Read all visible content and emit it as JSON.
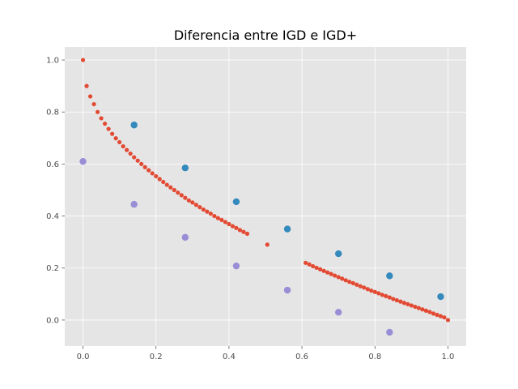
{
  "chart_data": {
    "type": "scatter",
    "title": "Diferencia entre IGD e IGD+",
    "xlabel": "",
    "ylabel": "",
    "xlim": [
      -0.05,
      1.05
    ],
    "ylim": [
      -0.1,
      1.05
    ],
    "xticks": [
      0.0,
      0.2,
      0.4,
      0.6,
      0.8,
      1.0
    ],
    "yticks": [
      0.0,
      0.2,
      0.4,
      0.6,
      0.8,
      1.0
    ],
    "xtick_labels": [
      "0.0",
      "0.2",
      "0.4",
      "0.6",
      "0.8",
      "1.0"
    ],
    "ytick_labels": [
      "0.0",
      "0.2",
      "0.4",
      "0.6",
      "0.8",
      "1.0"
    ],
    "grid": true,
    "style": "ggplot",
    "colors": {
      "background": "#e5e5e5",
      "grid": "#ffffff",
      "front": "#e24a33",
      "blue": "#348abd",
      "purple": "#988ed5"
    },
    "series": [
      {
        "color": "#e24a33",
        "marker_size": "small",
        "x": [
          0.0,
          0.01,
          0.02,
          0.03,
          0.04,
          0.05,
          0.06,
          0.07,
          0.08,
          0.09,
          0.1,
          0.11,
          0.12,
          0.13,
          0.14,
          0.15,
          0.16,
          0.17,
          0.18,
          0.19,
          0.2,
          0.21,
          0.22,
          0.23,
          0.24,
          0.25,
          0.26,
          0.27,
          0.28,
          0.29,
          0.3,
          0.31,
          0.32,
          0.33,
          0.34,
          0.35,
          0.36,
          0.37,
          0.38,
          0.39,
          0.4,
          0.41,
          0.42,
          0.43,
          0.44,
          0.45,
          0.505,
          0.61,
          0.62,
          0.63,
          0.64,
          0.65,
          0.66,
          0.67,
          0.68,
          0.69,
          0.7,
          0.71,
          0.72,
          0.73,
          0.74,
          0.75,
          0.76,
          0.77,
          0.78,
          0.79,
          0.8,
          0.81,
          0.82,
          0.83,
          0.84,
          0.85,
          0.86,
          0.87,
          0.88,
          0.89,
          0.9,
          0.91,
          0.92,
          0.93,
          0.94,
          0.95,
          0.96,
          0.97,
          0.98,
          0.99,
          1.0
        ],
        "y": [
          1.0,
          0.9,
          0.86,
          0.83,
          0.8,
          0.776,
          0.755,
          0.735,
          0.716,
          0.699,
          0.684,
          0.668,
          0.654,
          0.64,
          0.626,
          0.613,
          0.6,
          0.588,
          0.576,
          0.564,
          0.553,
          0.542,
          0.531,
          0.52,
          0.51,
          0.5,
          0.49,
          0.48,
          0.47,
          0.46,
          0.452,
          0.443,
          0.434,
          0.425,
          0.417,
          0.409,
          0.4,
          0.392,
          0.385,
          0.377,
          0.369,
          0.361,
          0.354,
          0.346,
          0.339,
          0.332,
          0.29,
          0.22,
          0.214,
          0.207,
          0.201,
          0.195,
          0.189,
          0.183,
          0.177,
          0.171,
          0.165,
          0.159,
          0.153,
          0.147,
          0.142,
          0.136,
          0.13,
          0.125,
          0.119,
          0.113,
          0.108,
          0.103,
          0.097,
          0.092,
          0.087,
          0.081,
          0.076,
          0.071,
          0.066,
          0.061,
          0.056,
          0.051,
          0.046,
          0.041,
          0.036,
          0.031,
          0.025,
          0.02,
          0.015,
          0.01,
          0.0
        ]
      },
      {
        "color": "#348abd",
        "marker_size": "large",
        "x": [
          0.14,
          0.28,
          0.42,
          0.56,
          0.7,
          0.84,
          0.98
        ],
        "y": [
          0.75,
          0.585,
          0.455,
          0.35,
          0.255,
          0.17,
          0.09
        ]
      },
      {
        "color": "#988ed5",
        "marker_size": "large",
        "x": [
          0.0,
          0.14,
          0.28,
          0.42,
          0.56,
          0.7,
          0.84
        ],
        "y": [
          0.61,
          0.445,
          0.318,
          0.208,
          0.115,
          0.03,
          -0.047
        ]
      }
    ]
  }
}
